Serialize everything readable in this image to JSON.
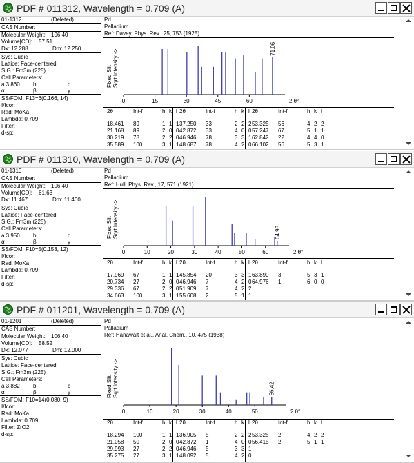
{
  "windows": [
    {
      "title": "PDF # 011312,  Wavelength = 0.709    (A)",
      "left": {
        "card_id": "01-1312",
        "status": "(Deleted)",
        "cas": "CAS Number:",
        "mw_label": "Molecular Weight:",
        "mw": "106.40",
        "vol_label": "Volume[CD]:",
        "vol": "57.51",
        "dx": "Dx: 12.288",
        "dm": "Dm: 12.250",
        "sys": "Sys: Cubic",
        "lattice": "Lattice: Face-centered",
        "sg": "S.G.: Fm3m (225)",
        "cell_params": "Cell Parameters:",
        "a": "a  3.860",
        "b": "b",
        "c": "c",
        "alpha": "α",
        "beta": "β",
        "gamma": "γ",
        "fom": "SS/FOM: F13=6(0.166, 14)",
        "icor": "I/Icor:",
        "rad": "Rad: MoKa",
        "lambda": "Lambda: 0.709",
        "filter": "Filter:",
        "dsp": "d-sp:"
      },
      "right": {
        "formula": "Pd",
        "name": "Palladium",
        "ref": "Ref: Davey, Phys. Rev., 25, 753 (1925)"
      },
      "chart_data": {
        "type": "bar",
        "ylabel": "Fixed  Slit\nSqrt  Intensity ->",
        "xlabel": "2 θ°",
        "xlim": [
          0,
          77
        ],
        "ticks": [
          0,
          15,
          30,
          45,
          60
        ],
        "peak_label": "71.06",
        "x": [
          18.461,
          21.168,
          30.219,
          35.589,
          37.25,
          42.872,
          46.946,
          48.687,
          53.325,
          57.247,
          62.842,
          66.102,
          71.06
        ],
        "values": [
          89,
          89,
          78,
          100,
          33,
          33,
          78,
          78,
          56,
          67,
          22,
          56,
          60
        ]
      },
      "table": {
        "headers": [
          "2θ",
          "Int-f",
          "h",
          "k",
          "l"
        ],
        "columns": [
          [
            [
              "18.461",
              "89",
              "1",
              "1",
              "1"
            ],
            [
              "21.168",
              "89",
              "2",
              "0",
              "0"
            ],
            [
              "30.219",
              "78",
              "2",
              "2",
              "0"
            ],
            [
              "35.589",
              "100",
              "3",
              "1",
              "1"
            ]
          ],
          [
            [
              "37.250",
              "33",
              "2",
              "2",
              "2"
            ],
            [
              "42.872",
              "33",
              "4",
              "0",
              "0"
            ],
            [
              "46.946",
              "78",
              "3",
              "3",
              "1"
            ],
            [
              "48.687",
              "78",
              "4",
              "2",
              "0"
            ]
          ],
          [
            [
              "53.325",
              "56",
              "4",
              "2",
              "2"
            ],
            [
              "57.247",
              "67",
              "5",
              "1",
              "1"
            ],
            [
              "62.842",
              "22",
              "4",
              "4",
              "0"
            ],
            [
              "66.102",
              "56",
              "5",
              "3",
              "1"
            ]
          ]
        ]
      }
    },
    {
      "title": "PDF # 011310,  Wavelength = 0.709    (A)",
      "left": {
        "card_id": "01-1310",
        "status": "(Deleted)",
        "cas": "CAS Number:",
        "mw_label": "Molecular Weight:",
        "mw": "106.40",
        "vol_label": "Volume[CD]:",
        "vol": "61.63",
        "dx": "Dx: 11.467",
        "dm": "Dm: 11.400",
        "sys": "Sys: Cubic",
        "lattice": "Lattice: Face-centered",
        "sg": "S.G.: Fm3m (225)",
        "cell_params": "Cell Parameters:",
        "a": "a  3.950",
        "b": "b",
        "c": "c",
        "alpha": "α",
        "beta": "β",
        "gamma": "γ",
        "fom": "SS/FOM: F10=5(0.153, 12)",
        "icor": "I/Icor:",
        "rad": "Rad: MoKa",
        "lambda": "Lambda: 0.709",
        "filter": "Filter:",
        "dsp": "d-sp:"
      },
      "right": {
        "formula": "Pd",
        "name": "Palladium",
        "ref": "Ref: Hull, Phys. Rev., 17, 571 (1921)"
      },
      "chart_data": {
        "type": "bar",
        "ylabel": "Fixed  Slit\nSqrt  Intensity ->",
        "xlabel": "2 θ°",
        "xlim": [
          0,
          70
        ],
        "ticks": [
          0,
          10,
          20,
          30,
          40,
          50,
          60
        ],
        "peak_label": "64.98",
        "x": [
          17.969,
          20.734,
          29.336,
          34.663,
          45.854,
          46.946,
          51.909,
          55.608,
          63.89,
          64.976
        ],
        "values": [
          67,
          27,
          67,
          100,
          20,
          7,
          7,
          2,
          3,
          1
        ]
      },
      "table": {
        "headers": [
          "2θ",
          "Int-f",
          "h",
          "k",
          "l"
        ],
        "columns": [
          [
            [
              "17.969",
              "67",
              "1",
              "1",
              "1"
            ],
            [
              "20.734",
              "27",
              "2",
              "0",
              "0"
            ],
            [
              "29.336",
              "67",
              "2",
              "2",
              "0"
            ],
            [
              "34.663",
              "100",
              "3",
              "1",
              "1"
            ]
          ],
          [
            [
              "45.854",
              "20",
              "3",
              "3",
              "1"
            ],
            [
              "46.946",
              "7",
              "4",
              "2",
              "0"
            ],
            [
              "51.909",
              "7",
              "4",
              "2",
              "2"
            ],
            [
              "55.608",
              "2",
              "5",
              "1",
              "1"
            ]
          ],
          [
            [
              "63.890",
              "3",
              "5",
              "3",
              "1"
            ],
            [
              "64.976",
              "1",
              "6",
              "0",
              "0"
            ]
          ]
        ]
      }
    },
    {
      "title": "PDF # 011201,  Wavelength = 0.709    (A)",
      "left": {
        "card_id": "01-1201",
        "status": "(Deleted)",
        "cas": "CAS Number:",
        "mw_label": "Molecular Weight:",
        "mw": "106.40",
        "vol_label": "Volume[CD]:",
        "vol": "58.52",
        "dx": "Dx: 12.077",
        "dm": "Dm: 12.000",
        "sys": "Sys: Cubic",
        "lattice": "Lattice: Face-centered",
        "sg": "S.G.: Fm3m (225)",
        "cell_params": "Cell Parameters:",
        "a": "a  3.882",
        "b": "b",
        "c": "c",
        "alpha": "α",
        "beta": "β",
        "gamma": "γ",
        "fom": "SS/FOM: F10=14(0.080,  9)",
        "icor": "I/Icor:",
        "rad": "Rad: MoKa",
        "lambda": "Lambda: 0.709",
        "filter": "Filter: ZrO2",
        "dsp": "d-sp:"
      },
      "right": {
        "formula": "Pd",
        "name": "Palladium",
        "ref": "Ref: Hanawalt et al., Anal. Chem., 10, 475 (1938)"
      },
      "chart_data": {
        "type": "bar",
        "ylabel": "Fixed  Slit\nSqrt  Intensity ->",
        "xlabel": "2 θ°",
        "xlim": [
          0,
          62
        ],
        "ticks": [
          0,
          10,
          20,
          30,
          40,
          50
        ],
        "peak_label": "56.42",
        "x": [
          18.294,
          21.058,
          29.993,
          35.275,
          36.905,
          42.872,
          46.946,
          48.092,
          53.325,
          56.415
        ],
        "values": [
          100,
          50,
          27,
          27,
          5,
          1,
          5,
          5,
          2,
          2
        ]
      },
      "table": {
        "headers": [
          "2θ",
          "Int-f",
          "h",
          "k",
          "l"
        ],
        "columns": [
          [
            [
              "18.294",
              "100",
              "1",
              "1",
              "1"
            ],
            [
              "21.058",
              "50",
              "2",
              "0",
              "0"
            ],
            [
              "29.993",
              "27",
              "2",
              "2",
              "0"
            ],
            [
              "35.275",
              "27",
              "3",
              "1",
              "1"
            ]
          ],
          [
            [
              "36.905",
              "5",
              "2",
              "2",
              "2"
            ],
            [
              "42.872",
              "1",
              "4",
              "0",
              "0"
            ],
            [
              "46.946",
              "5",
              "3",
              "3",
              "1"
            ],
            [
              "48.092",
              "5",
              "4",
              "2",
              "0"
            ]
          ],
          [
            [
              "53.325",
              "2",
              "4",
              "2",
              "2"
            ],
            [
              "56.415",
              "2",
              "5",
              "1",
              "1"
            ]
          ]
        ]
      }
    }
  ],
  "colors": {
    "peak": "#3b3bb5",
    "axis": "#000000"
  }
}
